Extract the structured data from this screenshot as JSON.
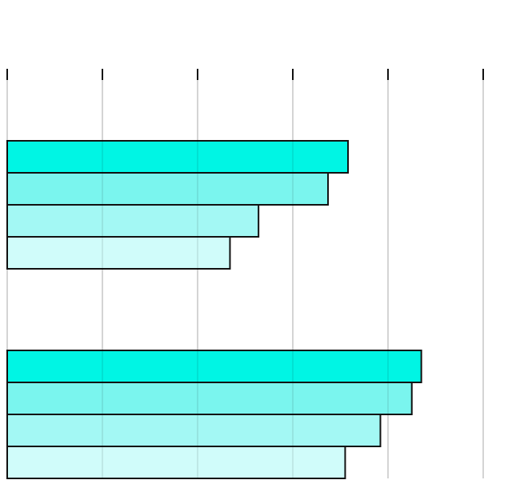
{
  "chart_data": {
    "type": "bar",
    "orientation": "horizontal",
    "categories": [
      null,
      null
    ],
    "series": [
      {
        "color": "#00f5e4",
        "values": [
          3.58,
          4.35
        ]
      },
      {
        "color": "#7af5ee",
        "values": [
          3.37,
          4.25
        ]
      },
      {
        "color": "#a3f8f4",
        "values": [
          2.64,
          3.92
        ]
      },
      {
        "color": "#d0fcfa",
        "values": [
          2.34,
          3.55
        ]
      }
    ],
    "xlim": [
      0,
      5
    ],
    "xticks": [
      0,
      1,
      2,
      3,
      4,
      5
    ],
    "grid": true
  }
}
